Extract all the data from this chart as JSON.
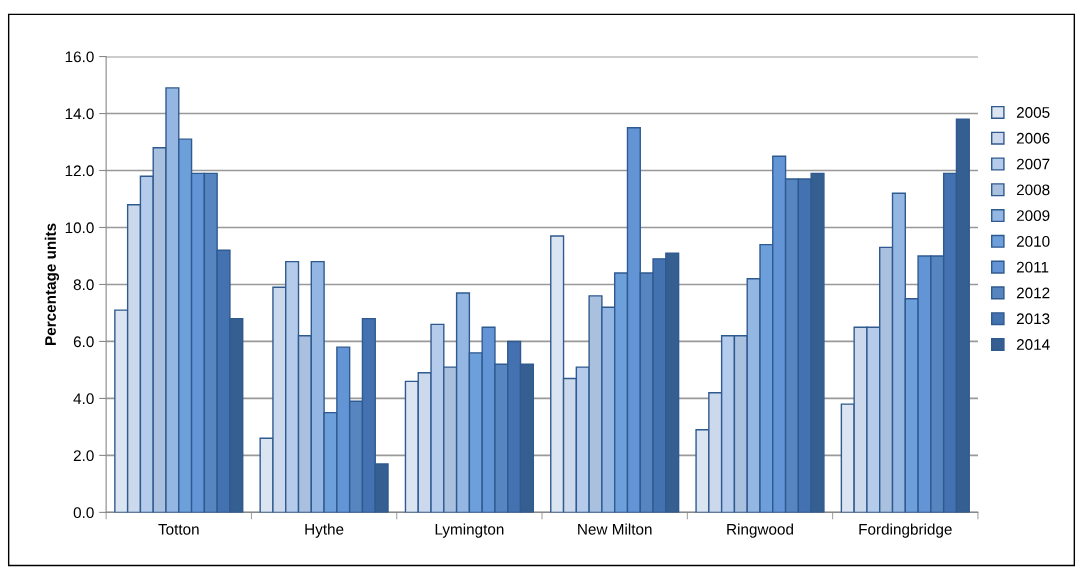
{
  "chart_data": {
    "type": "bar",
    "ylabel": "Percentage units",
    "categories": [
      "Totton",
      "Hythe",
      "Lymington",
      "New Milton",
      "Ringwood",
      "Fordingbridge"
    ],
    "series": [
      {
        "name": "2005",
        "color": "#dbe4f1",
        "values": [
          7.1,
          2.6,
          4.6,
          9.7,
          2.9,
          3.8
        ]
      },
      {
        "name": "2006",
        "color": "#ccd9ec",
        "values": [
          10.8,
          7.9,
          4.9,
          4.7,
          4.2,
          6.5
        ]
      },
      {
        "name": "2007",
        "color": "#b4cbeb",
        "values": [
          11.8,
          8.8,
          6.6,
          5.1,
          6.2,
          6.5
        ]
      },
      {
        "name": "2008",
        "color": "#a9c0df",
        "values": [
          12.8,
          6.2,
          5.1,
          7.6,
          6.2,
          9.3
        ]
      },
      {
        "name": "2009",
        "color": "#93b6e2",
        "values": [
          14.9,
          8.8,
          7.7,
          7.2,
          8.2,
          11.2
        ]
      },
      {
        "name": "2010",
        "color": "#6d9fdb",
        "values": [
          13.1,
          3.5,
          5.6,
          8.4,
          9.4,
          7.5
        ]
      },
      {
        "name": "2011",
        "color": "#6395d6",
        "values": [
          11.9,
          5.8,
          6.5,
          13.5,
          12.5,
          9.0
        ]
      },
      {
        "name": "2012",
        "color": "#5685bf",
        "values": [
          11.9,
          3.9,
          5.2,
          8.4,
          11.7,
          9.0
        ]
      },
      {
        "name": "2013",
        "color": "#4472b0",
        "values": [
          9.2,
          6.8,
          6.0,
          8.9,
          11.7,
          11.9
        ]
      },
      {
        "name": "2014",
        "color": "#355f91",
        "values": [
          6.8,
          1.7,
          5.2,
          9.1,
          11.9,
          13.8
        ]
      }
    ],
    "ylim": [
      0,
      16
    ],
    "yticks": [
      {
        "value": 0,
        "label": "0.0"
      },
      {
        "value": 2,
        "label": "2.0"
      },
      {
        "value": 4,
        "label": "4.0"
      },
      {
        "value": 6,
        "label": "6.0"
      },
      {
        "value": 8,
        "label": "8.0"
      },
      {
        "value": 10,
        "label": "10.0"
      },
      {
        "value": 12,
        "label": "12.0"
      },
      {
        "value": 14,
        "label": "14.0"
      },
      {
        "value": 16,
        "label": "16.0"
      }
    ],
    "grid": "y",
    "legend": "right"
  }
}
